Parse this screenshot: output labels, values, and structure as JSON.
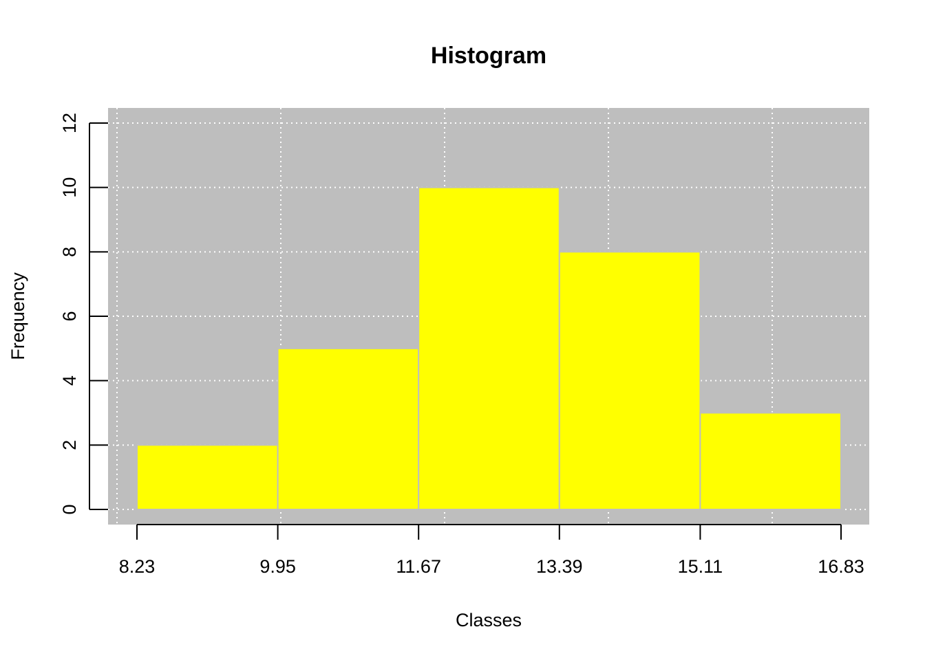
{
  "chart_data": {
    "type": "bar",
    "title": "Histogram",
    "xlabel": "Classes",
    "ylabel": "Frequency",
    "breaks": [
      8.23,
      9.95,
      11.67,
      13.39,
      15.11,
      16.83
    ],
    "x_tick_labels": [
      "8.23",
      "9.95",
      "11.67",
      "13.39",
      "15.11",
      "16.83"
    ],
    "categories": [
      "8.23-9.95",
      "9.95-11.67",
      "11.67-13.39",
      "13.39-15.11",
      "15.11-16.83"
    ],
    "values": [
      2,
      5,
      10,
      8,
      3
    ],
    "ylim": [
      0,
      12
    ],
    "y_ticks": [
      0,
      2,
      4,
      6,
      8,
      10,
      12
    ],
    "y_tick_labels": [
      "0",
      "2",
      "4",
      "6",
      "8",
      "10",
      "12"
    ],
    "grid": true,
    "colors": {
      "bar_fill": "#ffff00",
      "bar_border": "#bebebe",
      "panel_background": "#bebebe",
      "grid": "#ffffff"
    }
  }
}
